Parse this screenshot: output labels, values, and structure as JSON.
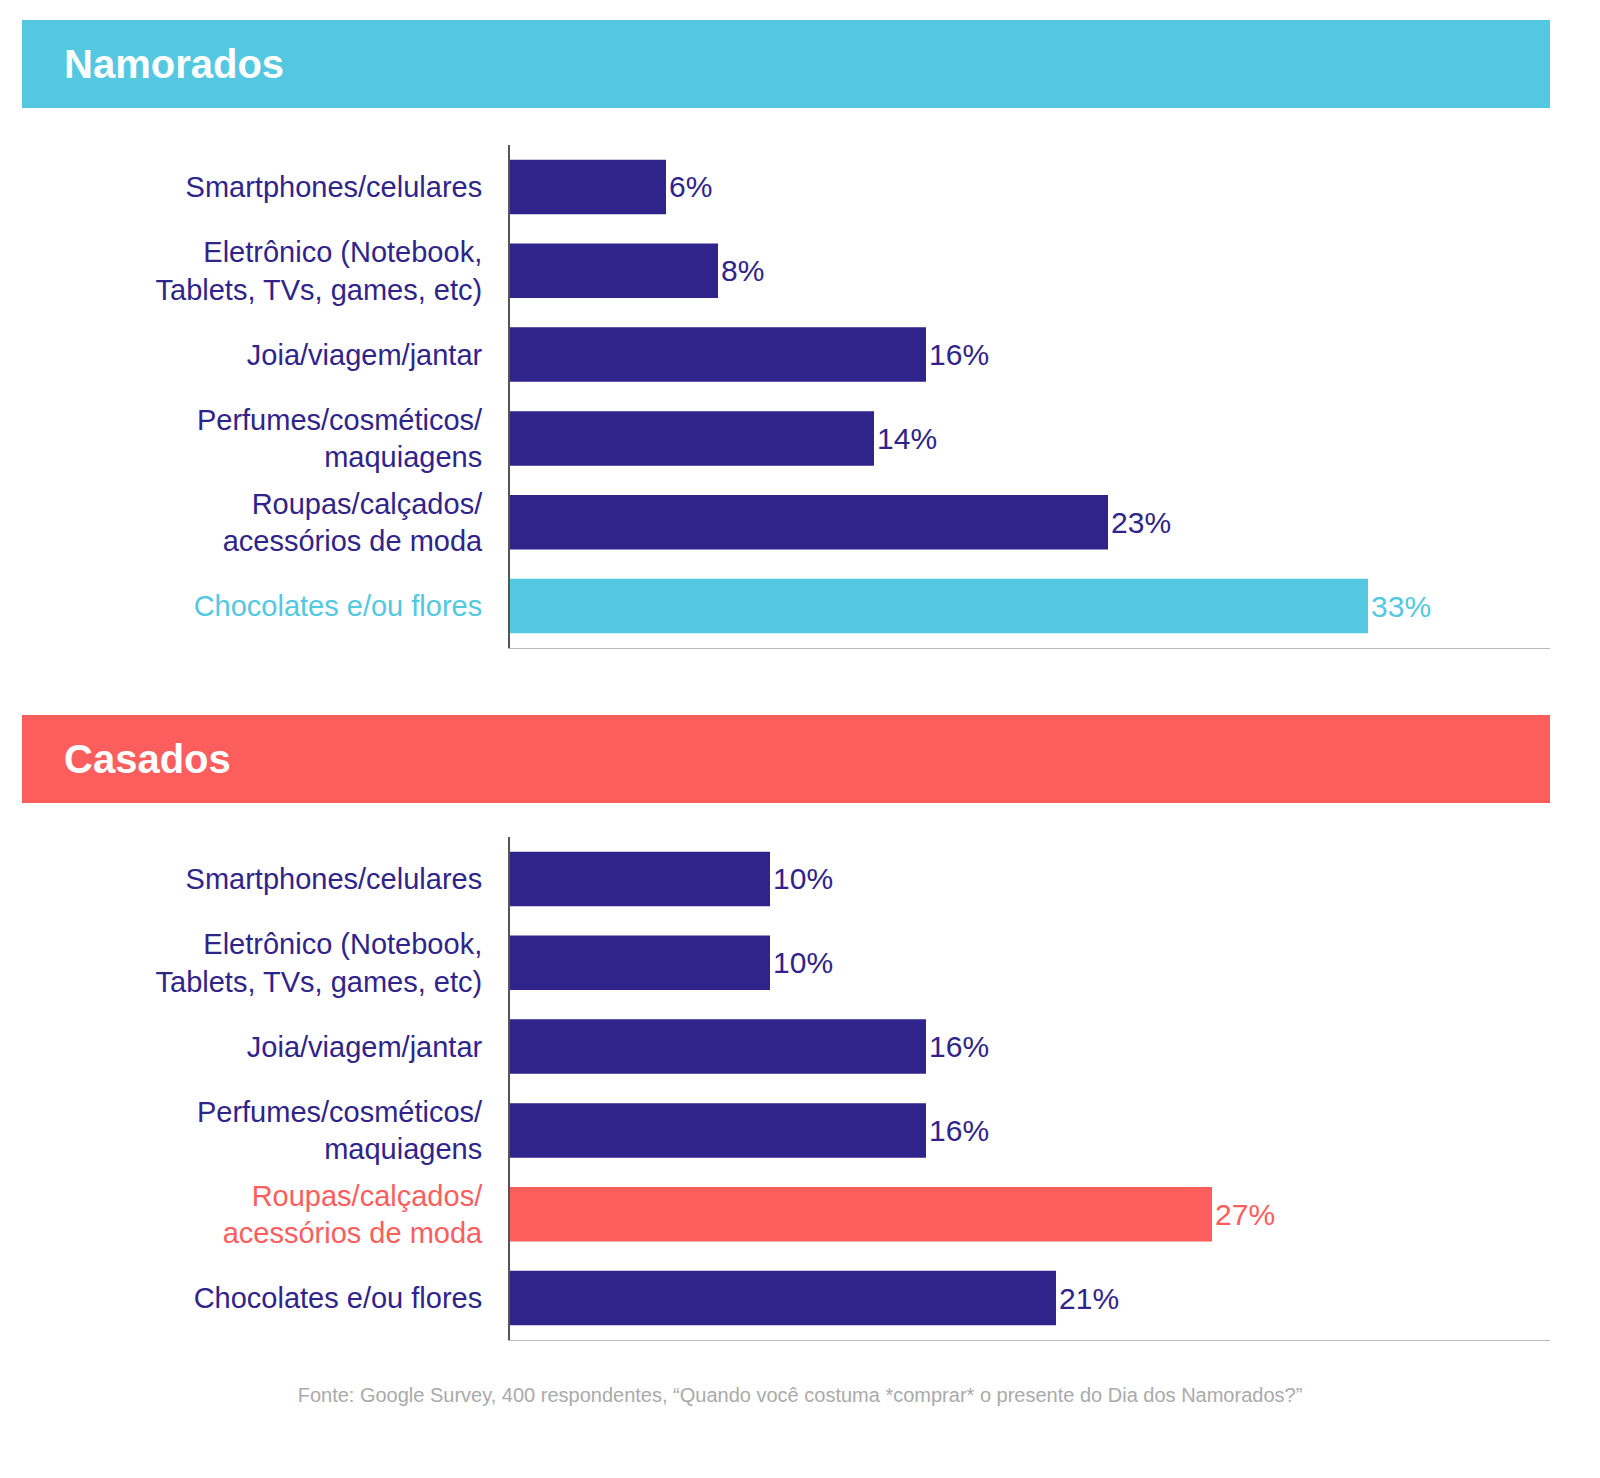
{
  "chart_data": [
    {
      "type": "bar",
      "title": "Namorados",
      "orientation": "horizontal",
      "categories": [
        "Smartphones/celulares",
        "Eletrônico (Notebook,\nTablets, TVs, games, etc)",
        "Joia/viagem/jantar",
        "Perfumes/cosméticos/\nmaquiagens",
        "Roupas/calçados/\nacessórios de moda",
        "Chocolates e/ou flores"
      ],
      "values": [
        6,
        8,
        16,
        14,
        23,
        33
      ],
      "value_labels": [
        "6%",
        "8%",
        "16%",
        "14%",
        "23%",
        "33%"
      ],
      "colors": [
        "#30248a",
        "#30248a",
        "#30248a",
        "#30248a",
        "#30248a",
        "#53c8e0"
      ],
      "xlim": [
        0,
        40
      ],
      "grid": false,
      "data_labels": true,
      "tick_labels": "y"
    },
    {
      "type": "bar",
      "title": "Casados",
      "orientation": "horizontal",
      "categories": [
        "Smartphones/celulares",
        "Eletrônico (Notebook,\nTablets, TVs, games, etc)",
        "Joia/viagem/jantar",
        "Perfumes/cosméticos/\nmaquiagens",
        "Roupas/calçados/\nacessórios de moda",
        "Chocolates e/ou flores"
      ],
      "values": [
        10,
        10,
        16,
        16,
        27,
        21
      ],
      "value_labels": [
        "10%",
        "10%",
        "16%",
        "16%",
        "27%",
        "21%"
      ],
      "colors": [
        "#30248a",
        "#30248a",
        "#30248a",
        "#30248a",
        "#fc5e5e",
        "#30248a"
      ],
      "xlim": [
        0,
        40
      ],
      "grid": false,
      "data_labels": true,
      "tick_labels": "y"
    }
  ],
  "source": "Fonte: Google Survey, 400 respondentes, “Quando você costuma *comprar* o presente do Dia dos Namorados?”"
}
